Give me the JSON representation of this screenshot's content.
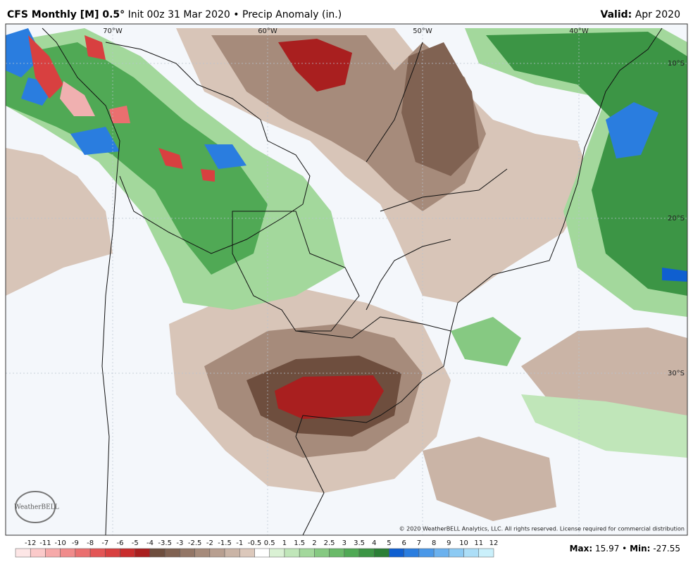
{
  "header": {
    "title_bold": "CFS Monthly [M] 0.5°",
    "title_rest": "Init 00z 31 Mar 2020 • Precip Anomaly (in.)",
    "valid_label": "Valid:",
    "valid_value": "Apr 2020"
  },
  "map": {
    "lon_labels": [
      "70°W",
      "60°W",
      "50°W",
      "40°W"
    ],
    "lat_labels": [
      "10°S",
      "20°S",
      "30°S"
    ],
    "copyright": "© 2020 WeatherBELL Analytics, LLC. All rights reserved. License required for commercial distribution",
    "logo": "WeatherBELL"
  },
  "legend": {
    "labels": [
      "-12",
      "-11",
      "-10",
      "-9",
      "-8",
      "-7",
      "-6",
      "-5",
      "-4",
      "-3.5",
      "-3",
      "-2.5",
      "-2",
      "-1.5",
      "-1",
      "-0.5",
      "0.5",
      "1",
      "1.5",
      "2",
      "2.5",
      "3",
      "3.5",
      "4",
      "5",
      "6",
      "7",
      "8",
      "9",
      "10",
      "11",
      "12"
    ],
    "colors": [
      "#fde6e6",
      "#fbcaca",
      "#f6a9a9",
      "#f08b8b",
      "#ea6f6f",
      "#e35656",
      "#d84040",
      "#c92d2d",
      "#a91f1f",
      "#6e4e3e",
      "#806252",
      "#937666",
      "#a68b7b",
      "#b89f90",
      "#caB4a6",
      "#dcc8bb",
      "#ffffff",
      "#daf1d4",
      "#c0e6b9",
      "#a3d89c",
      "#86c982",
      "#6aba69",
      "#50a955",
      "#3c9545",
      "#2b7f36",
      "#0f5fd0",
      "#2a7ddf",
      "#4a98e8",
      "#6bb1ee",
      "#8ccaf3",
      "#acdef7",
      "#caf0fb"
    ]
  },
  "stats": {
    "max_label": "Max:",
    "max": 15.97,
    "separator": "•",
    "min_label": "Min:",
    "min": -27.55
  }
}
